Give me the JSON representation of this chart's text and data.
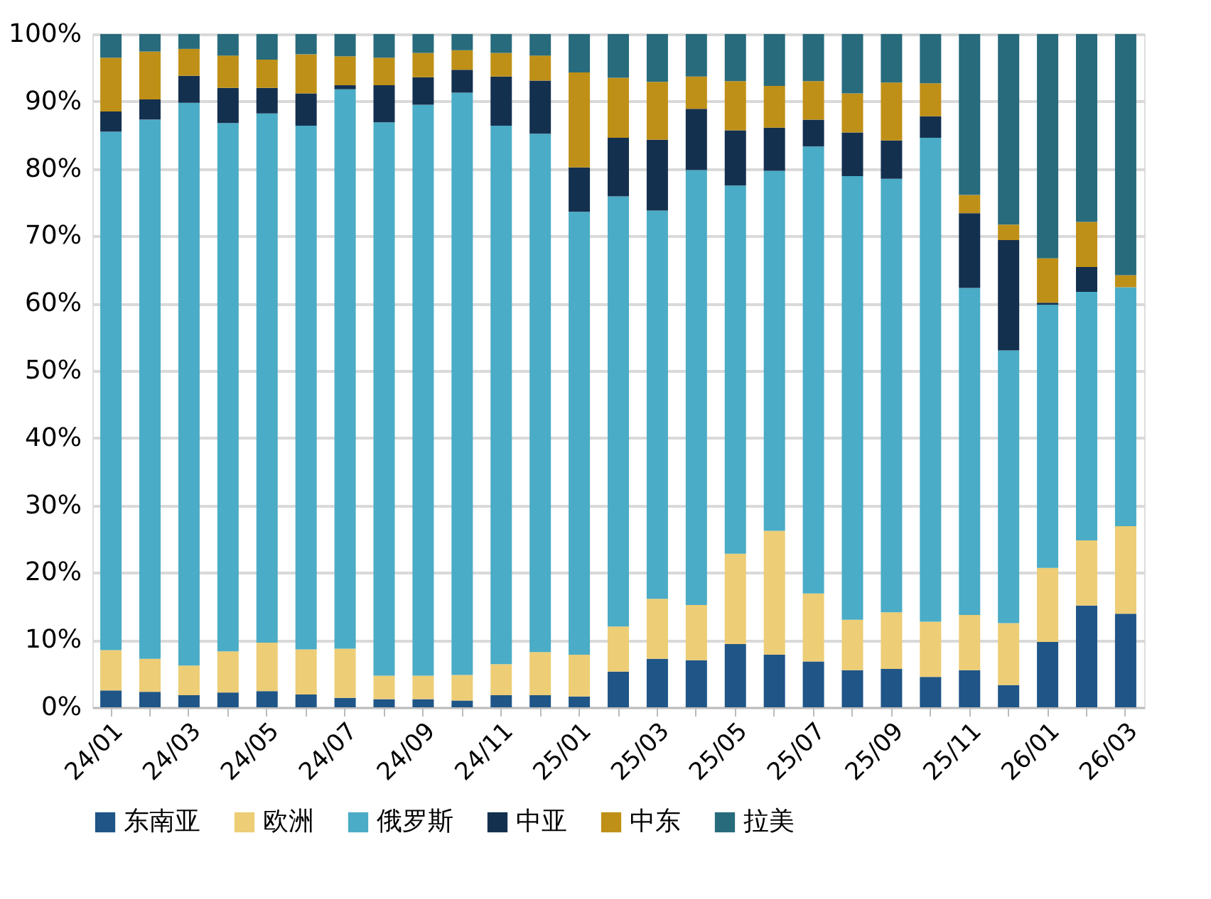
{
  "chart_data": {
    "type": "bar",
    "stacked": true,
    "categories": [
      "24/01",
      null,
      "24/03",
      null,
      "24/05",
      null,
      "24/07",
      null,
      "24/09",
      null,
      "24/11",
      null,
      "25/01",
      null,
      "25/03",
      null,
      "25/05",
      null,
      "25/07",
      null,
      "25/09",
      null,
      "25/11",
      null,
      "26/01",
      null,
      "26/03"
    ],
    "ylim": [
      0,
      100
    ],
    "yticks": [
      {
        "value": 0,
        "label": "0%"
      },
      {
        "value": 10,
        "label": "10%"
      },
      {
        "value": 20,
        "label": "20%"
      },
      {
        "value": 30,
        "label": "30%"
      },
      {
        "value": 40,
        "label": "40%"
      },
      {
        "value": 50,
        "label": "50%"
      },
      {
        "value": 60,
        "label": "60%"
      },
      {
        "value": 70,
        "label": "70%"
      },
      {
        "value": 80,
        "label": "80%"
      },
      {
        "value": 90,
        "label": "90%"
      },
      {
        "value": 100,
        "label": "100%"
      }
    ],
    "grid": "y",
    "legend": "bottom",
    "series": [
      {
        "name": "东南亚",
        "color": "#1f5587",
        "values": [
          2.5,
          2.3,
          1.8,
          2.2,
          2.4,
          1.9,
          1.4,
          1.2,
          1.2,
          1.0,
          1.8,
          1.8,
          1.6,
          5.3,
          7.2,
          7.0,
          9.4,
          7.8,
          6.8,
          5.5,
          5.7,
          4.5,
          5.5,
          3.3,
          9.7,
          15.1,
          13.9
        ]
      },
      {
        "name": "欧洲",
        "color": "#edcd75",
        "values": [
          6.0,
          4.9,
          4.4,
          6.1,
          7.2,
          6.7,
          7.3,
          3.5,
          3.5,
          3.8,
          4.6,
          6.4,
          6.2,
          6.7,
          8.9,
          8.2,
          13.4,
          18.4,
          10.1,
          7.5,
          8.4,
          8.2,
          8.2,
          9.2,
          11.0,
          9.7,
          13.0
        ]
      },
      {
        "name": "俄罗斯",
        "color": "#4aacc6",
        "values": [
          77.0,
          80.1,
          83.6,
          78.5,
          78.6,
          77.8,
          83.1,
          82.2,
          84.8,
          86.5,
          80.0,
          77.0,
          65.8,
          63.9,
          57.7,
          64.6,
          54.7,
          53.5,
          66.4,
          65.9,
          64.4,
          71.9,
          48.6,
          40.5,
          39.1,
          36.9,
          35.5
        ]
      },
      {
        "name": "中亚",
        "color": "#14304f",
        "values": [
          3.0,
          3.0,
          4.0,
          5.2,
          3.8,
          4.8,
          0.6,
          5.5,
          4.1,
          3.4,
          7.3,
          7.9,
          6.6,
          8.7,
          10.5,
          9.1,
          8.2,
          6.4,
          4.0,
          6.5,
          5.7,
          3.2,
          11.1,
          16.4,
          0.3,
          3.7,
          null
        ]
      },
      {
        "name": "中东",
        "color": "#bf9017",
        "values": [
          8.0,
          7.1,
          4.0,
          4.8,
          4.2,
          5.8,
          4.3,
          4.1,
          3.6,
          2.9,
          3.5,
          3.7,
          14.1,
          8.9,
          8.6,
          4.8,
          7.3,
          6.2,
          5.7,
          5.8,
          8.6,
          4.9,
          2.7,
          2.3,
          6.6,
          6.7,
          1.8
        ]
      },
      {
        "name": "拉美",
        "color": "#276b7c",
        "values": [
          3.5,
          2.6,
          2.2,
          3.2,
          3.8,
          3.0,
          3.3,
          3.5,
          2.8,
          2.4,
          2.8,
          3.2,
          5.7,
          6.5,
          7.1,
          6.3,
          7.0,
          7.7,
          7.0,
          8.8,
          7.2,
          7.3,
          23.9,
          28.3,
          33.3,
          27.9,
          35.8
        ]
      }
    ]
  }
}
